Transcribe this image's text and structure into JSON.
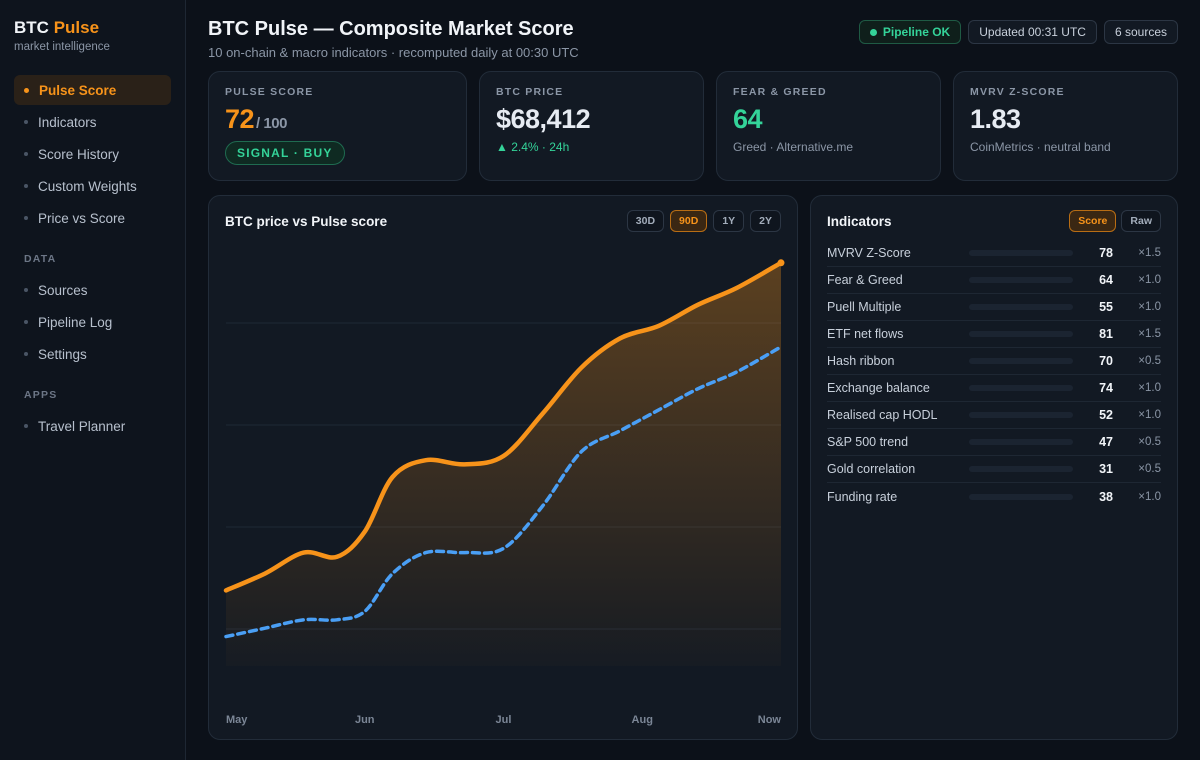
{
  "brand": {
    "name": "BTC",
    "accent": "Pulse",
    "subtitle": "market intelligence"
  },
  "nav": {
    "main": [
      {
        "label": "Pulse Score",
        "active": true
      },
      {
        "label": "Indicators"
      },
      {
        "label": "Score History"
      },
      {
        "label": "Custom Weights"
      },
      {
        "label": "Price vs Score"
      }
    ],
    "data_section": "DATA",
    "data": [
      {
        "label": "Sources"
      },
      {
        "label": "Pipeline Log"
      },
      {
        "label": "Settings"
      }
    ],
    "apps_section": "APPS",
    "apps": [
      {
        "label": "Travel Planner"
      }
    ]
  },
  "header": {
    "title": "BTC Pulse — Composite Market Score",
    "subtitle": "10 on-chain & macro indicators · recomputed daily at 00:30 UTC",
    "pipeline": "Pipeline OK",
    "updated": "Updated 00:31 UTC",
    "sources": "6 sources"
  },
  "kpis": {
    "pulse": {
      "label": "PULSE SCORE",
      "value": "72",
      "out_of": "/ 100",
      "signal": "SIGNAL · BUY"
    },
    "price": {
      "label": "BTC PRICE",
      "value": "$68,412",
      "change": "▲ 2.4% · 24h"
    },
    "fear": {
      "label": "FEAR & GREED",
      "value": "64",
      "sub": "Greed · Alternative.me"
    },
    "mvrv": {
      "label": "MVRV Z-SCORE",
      "value": "1.83",
      "sub": "CoinMetrics · neutral band"
    }
  },
  "chart": {
    "title": "BTC price vs Pulse score",
    "ranges": [
      "30D",
      "90D",
      "1Y",
      "2Y"
    ],
    "active_range": "90D"
  },
  "chart_data": {
    "type": "area",
    "title": "BTC price vs Pulse score",
    "x_labels": [
      "May",
      "Jun",
      "Jul",
      "Aug",
      "Now"
    ],
    "x": [
      0,
      0.07,
      0.14,
      0.2,
      0.25,
      0.3,
      0.36,
      0.43,
      0.5,
      0.57,
      0.64,
      0.71,
      0.78,
      0.85,
      0.92,
      1.0
    ],
    "series": [
      {
        "color": "#f7931a",
        "style": "solid-area",
        "values": [
          0.18,
          0.22,
          0.27,
          0.26,
          0.32,
          0.45,
          0.49,
          0.48,
          0.5,
          0.6,
          0.71,
          0.78,
          0.81,
          0.86,
          0.9,
          0.96
        ]
      },
      {
        "color": "#4a9ff5",
        "style": "dashed",
        "values": [
          0.07,
          0.09,
          0.11,
          0.11,
          0.13,
          0.22,
          0.27,
          0.27,
          0.28,
          0.38,
          0.51,
          0.56,
          0.61,
          0.66,
          0.7,
          0.76
        ]
      }
    ],
    "grid": true,
    "legend": "none"
  },
  "indicators": {
    "title": "Indicators",
    "toggle": [
      "Score",
      "Raw"
    ],
    "active_toggle": "Score",
    "rows": [
      {
        "name": "MVRV Z-Score",
        "score": 78,
        "weight": "×1.5",
        "color": "#22a06b"
      },
      {
        "name": "Fear & Greed",
        "score": 64,
        "weight": "×1.0",
        "color": "#22a06b"
      },
      {
        "name": "Puell Multiple",
        "score": 55,
        "weight": "×1.0",
        "color": "#f5a53a"
      },
      {
        "name": "ETF net flows",
        "score": 81,
        "weight": "×1.5",
        "color": "#22a06b"
      },
      {
        "name": "Hash ribbon",
        "score": 70,
        "weight": "×0.5",
        "color": "#22a06b"
      },
      {
        "name": "Exchange balance",
        "score": 74,
        "weight": "×1.0",
        "color": "#22a06b"
      },
      {
        "name": "Realised cap HODL",
        "score": 52,
        "weight": "×1.0",
        "color": "#f5a53a"
      },
      {
        "name": "S&P 500 trend",
        "score": 47,
        "weight": "×0.5",
        "color": "#f5a53a"
      },
      {
        "name": "Gold correlation",
        "score": 31,
        "weight": "×0.5",
        "color": "#d84545"
      },
      {
        "name": "Funding rate",
        "score": 38,
        "weight": "×1.0",
        "color": "#d84545"
      }
    ]
  },
  "colors": {
    "accent": "#f7931a",
    "positive": "#34d399",
    "secondary_series": "#4a9ff5"
  }
}
